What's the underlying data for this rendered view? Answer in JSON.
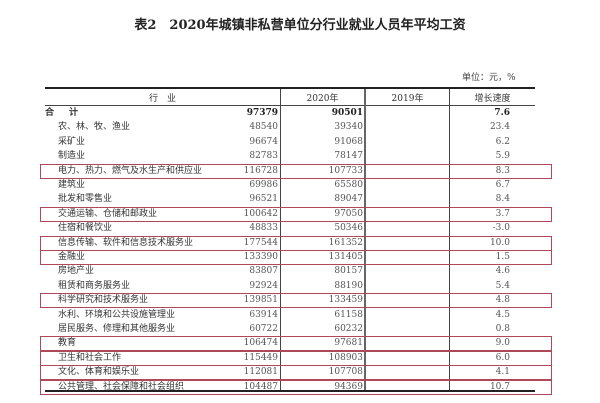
{
  "title": "表2　2020年城镇非私营单位分行业就业人员年平均工资",
  "unit": "单位：元，%",
  "highlight_color": "#b0485a",
  "columns": [
    "行　业",
    "2020年",
    "2019年",
    "增长速度"
  ],
  "rows": [
    {
      "name": "合　计",
      "y2020": "97379",
      "y2019": "90501",
      "growth": "7.6",
      "total": true
    },
    {
      "name": "农、林、牧、渔业",
      "y2020": "48540",
      "y2019": "39340",
      "growth": "23.4"
    },
    {
      "name": "采矿业",
      "y2020": "96674",
      "y2019": "91068",
      "growth": "6.2"
    },
    {
      "name": "制造业",
      "y2020": "82783",
      "y2019": "78147",
      "growth": "5.9"
    },
    {
      "name": "电力、热力、燃气及水生产和供应业",
      "y2020": "116728",
      "y2019": "107733",
      "growth": "8.3",
      "highlighted": true
    },
    {
      "name": "建筑业",
      "y2020": "69986",
      "y2019": "65580",
      "growth": "6.7"
    },
    {
      "name": "批发和零售业",
      "y2020": "96521",
      "y2019": "89047",
      "growth": "8.4"
    },
    {
      "name": "交通运输、仓储和邮政业",
      "y2020": "100642",
      "y2019": "97050",
      "growth": "3.7",
      "highlighted": true
    },
    {
      "name": "住宿和餐饮业",
      "y2020": "48833",
      "y2019": "50346",
      "growth": "-3.0"
    },
    {
      "name": "信息传输、软件和信息技术服务业",
      "y2020": "177544",
      "y2019": "161352",
      "growth": "10.0",
      "highlighted": true
    },
    {
      "name": "金融业",
      "y2020": "133390",
      "y2019": "131405",
      "growth": "1.5",
      "highlighted": true
    },
    {
      "name": "房地产业",
      "y2020": "83807",
      "y2019": "80157",
      "growth": "4.6"
    },
    {
      "name": "租赁和商务服务业",
      "y2020": "92924",
      "y2019": "88190",
      "growth": "5.4"
    },
    {
      "name": "科学研究和技术服务业",
      "y2020": "139851",
      "y2019": "133459",
      "growth": "4.8",
      "highlighted": true
    },
    {
      "name": "水利、环境和公共设施管理业",
      "y2020": "63914",
      "y2019": "61158",
      "growth": "4.5"
    },
    {
      "name": "居民服务、修理和其他服务业",
      "y2020": "60722",
      "y2019": "60232",
      "growth": "0.8"
    },
    {
      "name": "教育",
      "y2020": "106474",
      "y2019": "97681",
      "growth": "9.0",
      "highlighted": true
    },
    {
      "name": "卫生和社会工作",
      "y2020": "115449",
      "y2019": "108903",
      "growth": "6.0",
      "highlighted": true
    },
    {
      "name": "文化、体育和娱乐业",
      "y2020": "112081",
      "y2019": "107708",
      "growth": "4.1",
      "highlighted": true
    },
    {
      "name": "公共管理、社会保障和社会组织",
      "y2020": "104487",
      "y2019": "94369",
      "growth": "10.7",
      "highlighted": true
    }
  ]
}
